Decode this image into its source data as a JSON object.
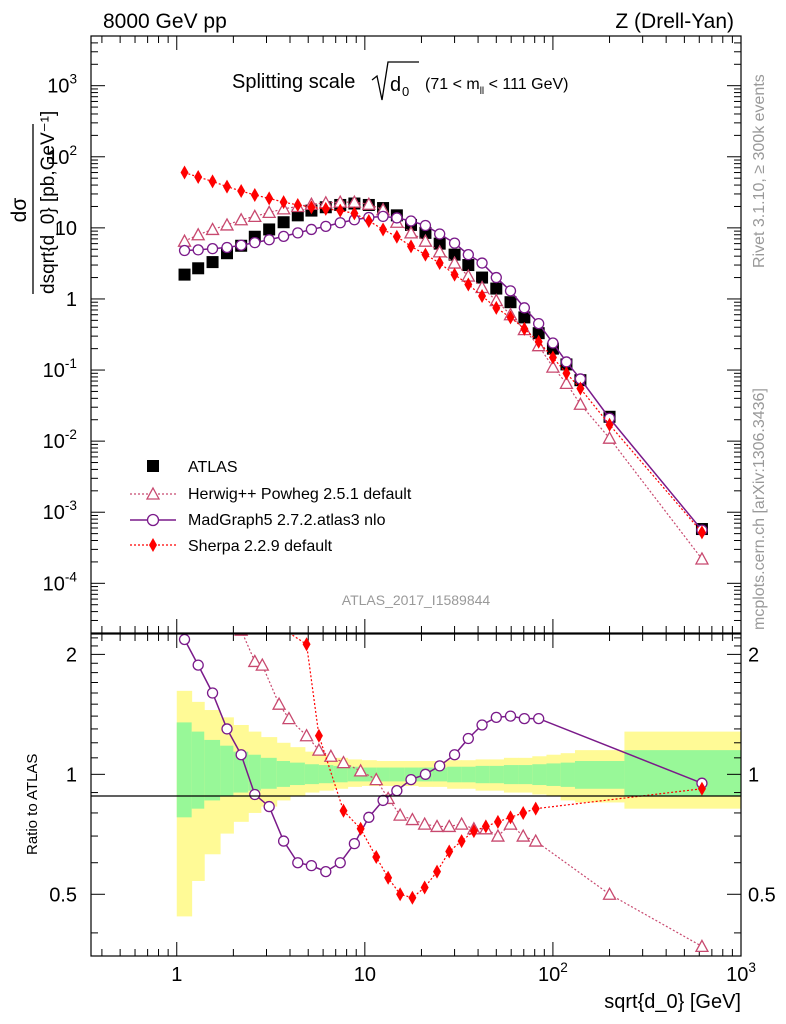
{
  "header": {
    "left": "8000 GeV pp",
    "right": "Z (Drell-Yan)"
  },
  "side": {
    "rivet": "Rivet 3.1.10, ≥ 300k events",
    "mcplots": "mcplots.cern.ch [arXiv:1306.3436]"
  },
  "watermark": "ATLAS_2017_I1589844",
  "colors": {
    "atlas": "#000000",
    "herwig": "#c8496f",
    "madgraph": "#7a1a8a",
    "sherpa": "#ff0000",
    "band_inner": "#98f898",
    "band_outer": "#fffa96"
  },
  "chart_data": [
    {
      "type": "scatter",
      "panel": "main",
      "title": "Splitting scale",
      "title_symbol": "√d",
      "title_sub": "0",
      "title_range": "(71 < m",
      "title_range_sub": "ll",
      "title_range_end": " < 111 GeV)",
      "xlabel": "sqrt{d_0} [GeV]",
      "ylabel": "dσ / dsqrt{d_0} [pb,GeV⁻¹]",
      "ylabel_top": "dσ",
      "ylabel_bottom": "dsqrt{d_0} [pb,GeV⁻¹]",
      "xscale": "log",
      "yscale": "log",
      "xlim": [
        0.35,
        1000
      ],
      "ylim": [
        2e-05,
        5000
      ],
      "yticks": [
        {
          "m": "10",
          "e": "-4",
          "v": 0.0001
        },
        {
          "m": "10",
          "e": "-3",
          "v": 0.001
        },
        {
          "m": "10",
          "e": "-2",
          "v": 0.01
        },
        {
          "m": "10",
          "e": "-1",
          "v": 0.1
        },
        {
          "m": "1",
          "e": "",
          "v": 1
        },
        {
          "m": "10",
          "e": "",
          "v": 10
        },
        {
          "m": "10",
          "e": "2",
          "v": 100
        },
        {
          "m": "10",
          "e": "3",
          "v": 1000
        }
      ],
      "legend_position": "lower-left",
      "series": [
        {
          "name": "ATLAS",
          "marker": "square",
          "x": [
            1.1,
            1.3,
            1.55,
            1.85,
            2.2,
            2.6,
            3.1,
            3.7,
            4.4,
            5.2,
            6.2,
            7.4,
            8.8,
            10.5,
            12.5,
            14.8,
            17.6,
            21,
            25,
            30,
            35.5,
            42,
            50,
            59.5,
            70.5,
            84,
            100,
            118,
            140,
            200,
            620
          ],
          "y": [
            2.2,
            2.7,
            3.3,
            4.4,
            5.6,
            7.5,
            9.5,
            12,
            15,
            17.5,
            19.5,
            21,
            22,
            21,
            19,
            15,
            11,
            8.5,
            6,
            4.2,
            3.0,
            2.0,
            1.4,
            0.9,
            0.55,
            0.33,
            0.2,
            0.12,
            0.072,
            0.022,
            0.00058
          ]
        },
        {
          "name": "Herwig++ Powheg 2.5.1 default",
          "marker": "open-triangle",
          "x": [
            1.1,
            1.3,
            1.55,
            1.85,
            2.2,
            2.6,
            3.1,
            3.7,
            4.4,
            5.2,
            6.2,
            7.4,
            8.8,
            10.5,
            12.5,
            14.8,
            17.6,
            21,
            25,
            30,
            35.5,
            42,
            50,
            59.5,
            70.5,
            84,
            100,
            118,
            140,
            200,
            620
          ],
          "y": [
            6.5,
            8,
            9.5,
            11,
            13,
            14.5,
            16.5,
            18.5,
            20,
            21.5,
            22.5,
            23,
            23,
            21.5,
            18,
            12,
            8.5,
            6.5,
            4.6,
            3.2,
            2.1,
            1.45,
            0.95,
            0.6,
            0.37,
            0.22,
            0.11,
            0.065,
            0.033,
            0.011,
            0.00022
          ]
        },
        {
          "name": "MadGraph5 2.7.2.atlas3 nlo",
          "marker": "open-circle",
          "x": [
            1.1,
            1.3,
            1.55,
            1.85,
            2.2,
            2.6,
            3.1,
            3.7,
            4.4,
            5.2,
            6.2,
            7.4,
            8.8,
            10.5,
            12.5,
            14.8,
            17.6,
            21,
            25,
            30,
            35.5,
            42,
            50,
            59.5,
            70.5,
            84,
            100,
            118,
            140,
            200,
            620
          ],
          "y": [
            4.8,
            4.9,
            5.1,
            5.3,
            5.7,
            6.2,
            6.8,
            7.6,
            8.5,
            9.5,
            10.5,
            11.8,
            13,
            14,
            14.5,
            13.8,
            12.5,
            10.8,
            8.2,
            6.1,
            4.2,
            3.2,
            2.0,
            1.3,
            0.75,
            0.45,
            0.24,
            0.13,
            0.075,
            0.021,
            0.00056
          ]
        },
        {
          "name": "Sherpa 2.2.9 default",
          "marker": "filled-diamond",
          "x": [
            1.1,
            1.3,
            1.55,
            1.85,
            2.2,
            2.6,
            3.1,
            3.7,
            4.4,
            5.2,
            6.2,
            7.4,
            8.8,
            10.5,
            12.5,
            14.8,
            17.6,
            21,
            25,
            30,
            35.5,
            42,
            50,
            59.5,
            70.5,
            84,
            100,
            118,
            140,
            200,
            620
          ],
          "y": [
            60,
            52,
            45,
            38,
            33,
            29,
            26,
            23,
            21,
            19.5,
            18.5,
            17.5,
            16,
            12.5,
            9.5,
            7.5,
            5.5,
            4.2,
            3.2,
            2.2,
            1.6,
            1.1,
            0.75,
            0.55,
            0.38,
            0.25,
            0.15,
            0.09,
            0.055,
            0.017,
            0.00052
          ]
        }
      ]
    },
    {
      "type": "line",
      "panel": "ratio",
      "xlabel": "sqrt{d_0} [GeV]",
      "ylabel": "Ratio to ATLAS",
      "xscale": "log",
      "xlim": [
        0.35,
        1000
      ],
      "ylim": [
        0.35,
        2.25
      ],
      "yticks": [
        0.5,
        1,
        2
      ],
      "xticks": [
        {
          "m": "1",
          "e": "",
          "v": 1
        },
        {
          "m": "10",
          "e": "",
          "v": 10
        },
        {
          "m": "10",
          "e": "2",
          "v": 100
        },
        {
          "m": "10",
          "e": "3",
          "v": 1000
        }
      ],
      "bands": {
        "edges": [
          1.0,
          1.2,
          1.4,
          1.7,
          2.0,
          2.4,
          2.8,
          3.4,
          4.0,
          4.8,
          5.7,
          6.8,
          8.1,
          9.6,
          11.5,
          13.6,
          16.2,
          19.3,
          23,
          27.4,
          32.6,
          38.8,
          46.1,
          54.9,
          65.3,
          77.7,
          92.4,
          110,
          131,
          240,
          1000
        ],
        "outer_lo": [
          0.44,
          0.54,
          0.63,
          0.71,
          0.76,
          0.8,
          0.83,
          0.86,
          0.88,
          0.9,
          0.91,
          0.92,
          0.93,
          0.935,
          0.935,
          0.935,
          0.935,
          0.93,
          0.93,
          0.92,
          0.92,
          0.91,
          0.91,
          0.9,
          0.9,
          0.89,
          0.88,
          0.86,
          0.85,
          0.82
        ],
        "outer_hi": [
          1.62,
          1.52,
          1.45,
          1.39,
          1.33,
          1.28,
          1.24,
          1.2,
          1.17,
          1.14,
          1.12,
          1.1,
          1.09,
          1.085,
          1.08,
          1.08,
          1.08,
          1.08,
          1.08,
          1.085,
          1.085,
          1.09,
          1.09,
          1.1,
          1.1,
          1.11,
          1.12,
          1.13,
          1.15,
          1.28
        ],
        "inner_lo": [
          0.78,
          0.82,
          0.86,
          0.88,
          0.9,
          0.91,
          0.92,
          0.93,
          0.94,
          0.945,
          0.95,
          0.955,
          0.96,
          0.96,
          0.96,
          0.96,
          0.96,
          0.96,
          0.96,
          0.955,
          0.955,
          0.95,
          0.95,
          0.945,
          0.945,
          0.94,
          0.935,
          0.93,
          0.92,
          0.88
        ],
        "inner_hi": [
          1.35,
          1.28,
          1.22,
          1.18,
          1.14,
          1.12,
          1.1,
          1.08,
          1.07,
          1.06,
          1.055,
          1.05,
          1.045,
          1.04,
          1.04,
          1.04,
          1.04,
          1.04,
          1.04,
          1.045,
          1.045,
          1.05,
          1.05,
          1.055,
          1.055,
          1.06,
          1.065,
          1.07,
          1.08,
          1.15
        ]
      },
      "series": [
        {
          "name": "Herwig++ Powheg 2.5.1 default",
          "x": [
            2.2,
            2.6,
            2.85,
            3.5,
            3.95,
            4.9,
            5.7,
            6.6,
            7.7,
            9.5,
            11.5,
            13.3,
            15.4,
            17.9,
            20.8,
            24.2,
            28.1,
            32.7,
            38,
            44,
            51,
            59.5,
            69.5,
            81,
            200,
            620
          ],
          "y": [
            2.3,
            1.92,
            1.88,
            1.5,
            1.38,
            1.25,
            1.15,
            1.11,
            1.07,
            1.02,
            0.97,
            0.87,
            0.79,
            0.77,
            0.75,
            0.74,
            0.74,
            0.75,
            0.73,
            0.73,
            0.7,
            0.75,
            0.7,
            0.68,
            0.5,
            0.37
          ]
        },
        {
          "name": "MadGraph5 2.7.2.atlas3 nlo",
          "x": [
            1.1,
            1.3,
            1.55,
            1.85,
            2.2,
            2.6,
            3.1,
            3.7,
            4.4,
            5.2,
            6.2,
            7.4,
            8.8,
            10.5,
            12.5,
            14.8,
            17.6,
            21,
            25,
            30,
            35.5,
            42,
            50,
            59.5,
            70.5,
            84,
            620
          ],
          "y": [
            2.18,
            1.88,
            1.6,
            1.3,
            1.12,
            0.89,
            0.83,
            0.68,
            0.6,
            0.59,
            0.57,
            0.6,
            0.67,
            0.78,
            0.86,
            0.91,
            0.97,
            1.0,
            1.05,
            1.12,
            1.23,
            1.33,
            1.39,
            1.4,
            1.38,
            1.38,
            0.95
          ]
        },
        {
          "name": "Sherpa 2.2.9 default",
          "x": [
            3.5,
            4.9,
            5.7,
            7.7,
            9.5,
            11.5,
            13.3,
            15.4,
            17.9,
            20.8,
            24.2,
            28.1,
            32.7,
            38,
            44,
            51,
            59.5,
            69.5,
            81,
            620
          ],
          "y": [
            2.35,
            2.12,
            1.25,
            0.81,
            0.73,
            0.62,
            0.55,
            0.5,
            0.49,
            0.52,
            0.57,
            0.64,
            0.68,
            0.72,
            0.74,
            0.76,
            0.78,
            0.8,
            0.82,
            0.92
          ]
        }
      ]
    }
  ]
}
